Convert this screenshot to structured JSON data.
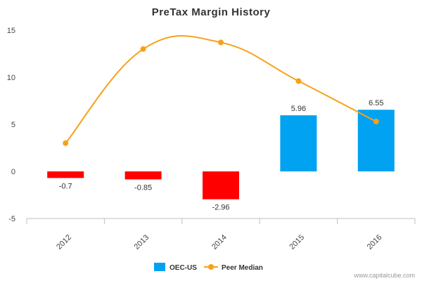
{
  "chart_data": {
    "type": "bar",
    "title": "PreTax Margin History",
    "categories": [
      "2012",
      "2013",
      "2014",
      "2015",
      "2016"
    ],
    "ylim": [
      -5,
      15
    ],
    "yticks": [
      -5,
      0,
      5,
      10,
      15
    ],
    "grid": false,
    "legend_position": "bottom-center",
    "series": [
      {
        "name": "OEC-US",
        "type": "bar",
        "values": [
          -0.7,
          -0.85,
          -2.96,
          5.96,
          6.55
        ],
        "data_labels": [
          "-0.7",
          "-0.85",
          "-2.96",
          "5.96",
          "6.55"
        ],
        "color_positive": "#00a2f1",
        "color_negative": "#ff0000"
      },
      {
        "name": "Peer Median",
        "type": "line",
        "values": [
          3.0,
          13.0,
          13.7,
          9.6,
          5.3
        ],
        "color": "#f7a11a"
      }
    ]
  },
  "credit": "www.capitalcube.com"
}
